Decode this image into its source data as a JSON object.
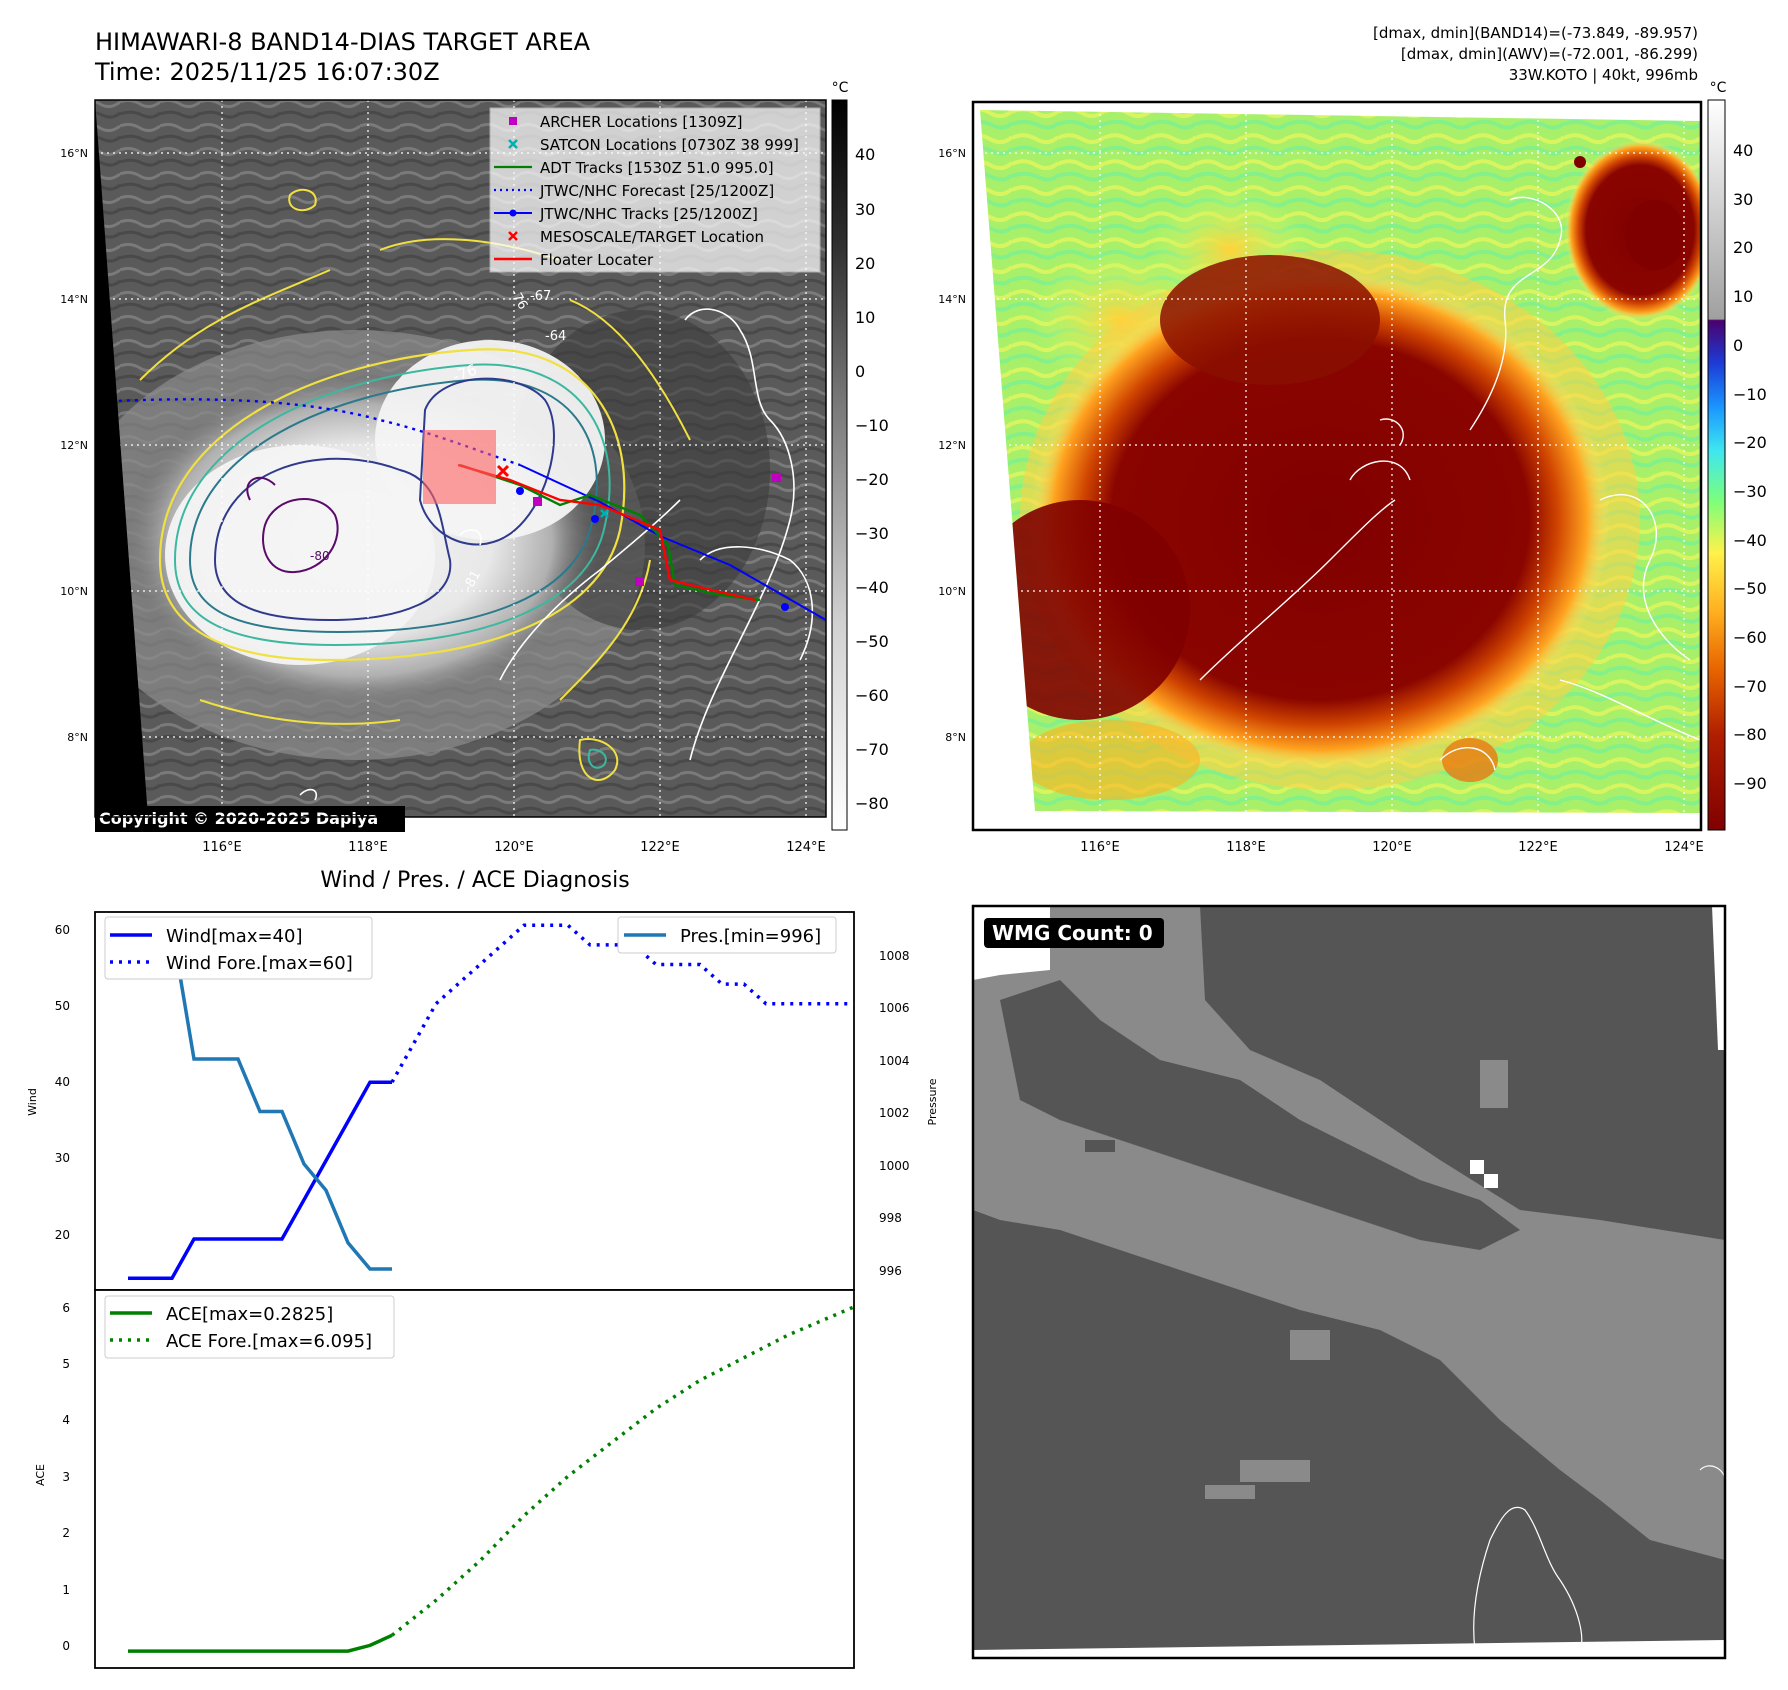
{
  "header": {
    "title_line1": "HIMAWARI-8 BAND14-DIAS TARGET AREA",
    "title_line2": "Time: 2025/11/25 16:07:30Z",
    "stats_line1": "[dmax, dmin](BAND14)=(-73.849, -89.957)",
    "stats_line2": "[dmax, dmin](AWV)=(-72.001, -86.299)",
    "stats_line3": "33W.KOTO | 40kt, 996mb"
  },
  "map": {
    "lat_ticks": [
      "16°N",
      "14°N",
      "12°N",
      "10°N",
      "8°N"
    ],
    "lon_ticks": [
      "116°E",
      "118°E",
      "120°E",
      "122°E",
      "124°E"
    ],
    "copyright": "Copyright © 2020-2025 Dapiya",
    "legend": [
      {
        "label": "ARCHER Locations [1309Z]",
        "color": "#c000c0",
        "marker": "square"
      },
      {
        "label": "SATCON Locations [0730Z 38 999]",
        "color": "#00b0b0",
        "marker": "x"
      },
      {
        "label": "ADT Tracks [1530Z 51.0 995.0]",
        "color": "#008000",
        "marker": "line"
      },
      {
        "label": "JTWC/NHC Forecast [25/1200Z]",
        "color": "#0000ff",
        "marker": "dotted"
      },
      {
        "label": "JTWC/NHC Tracks [25/1200Z]",
        "color": "#0000ff",
        "marker": "line-dot"
      },
      {
        "label": "MESOSCALE/TARGET Location",
        "color": "#ff0000",
        "marker": "x"
      },
      {
        "label": "Floater Locater",
        "color": "#ff0000",
        "marker": "line"
      }
    ],
    "contour_labels": [
      "-76",
      "-76",
      "-67",
      "-64",
      "-81",
      "-80"
    ],
    "cb1_unit": "°C",
    "cb1_ticks": [
      "40",
      "30",
      "20",
      "10",
      "0",
      "−10",
      "−20",
      "−30",
      "−40",
      "−50",
      "−60",
      "−70",
      "−80"
    ],
    "cb2_unit": "°C",
    "cb2_ticks": [
      "40",
      "30",
      "20",
      "10",
      "0",
      "−10",
      "−20",
      "−30",
      "−40",
      "−50",
      "−60",
      "−70",
      "−80",
      "−90"
    ]
  },
  "diag": {
    "title": "Wind / Pres. / ACE Diagnosis",
    "wmg": "WMG Count: 0"
  },
  "chart_data": [
    {
      "type": "line",
      "title": "Wind / Pres. / ACE Diagnosis",
      "ylabel": "Wind",
      "ylabel_right": "Pressure",
      "ylim": [
        13.5,
        61.7
      ],
      "ylim_right": [
        995.2,
        1009.6
      ],
      "yticks": [
        "60",
        "50",
        "40",
        "30",
        "20"
      ],
      "yticks_right": [
        "1008",
        "1006",
        "1004",
        "1002",
        "1000",
        "998",
        "996"
      ],
      "legend_left": [
        "Wind[max=40]",
        "Wind Fore.[max=60]"
      ],
      "legend_right": [
        "Pres.[min=996]"
      ],
      "series": [
        {
          "name": "Wind[max=40]",
          "style": "solid",
          "color": "#0000ff",
          "x": [
            0,
            1,
            2,
            3,
            4,
            5,
            6,
            7,
            8,
            9,
            10,
            11,
            12
          ],
          "values": [
            15,
            15,
            15,
            20,
            20,
            20,
            20,
            20,
            25,
            30,
            35,
            40,
            40
          ]
        },
        {
          "name": "Wind Fore.[max=60]",
          "style": "dotted",
          "color": "#0000ff",
          "x": [
            12,
            13,
            14,
            15,
            16,
            17,
            18,
            19,
            20,
            21,
            22,
            23,
            24,
            25,
            26,
            27,
            28,
            29,
            30,
            31,
            32,
            33
          ],
          "values": [
            40,
            45,
            50,
            52.5,
            55,
            57.5,
            60,
            60,
            60,
            57.5,
            57.5,
            57.5,
            55,
            55,
            55,
            52.5,
            52.5,
            50,
            50,
            50,
            50,
            50
          ]
        },
        {
          "name": "Pres.[min=996]",
          "style": "solid",
          "color": "#1f77b4",
          "axis": "right",
          "x": [
            1.5,
            2,
            3,
            4,
            5,
            6,
            7,
            8,
            9,
            10,
            11,
            12
          ],
          "values": [
            1009,
            1009,
            1004,
            1004,
            1004,
            1002,
            1002,
            1000,
            999,
            997,
            996,
            996
          ]
        }
      ]
    },
    {
      "type": "line",
      "ylabel": "ACE",
      "ylim": [
        -0.3,
        6.4
      ],
      "yticks": [
        "6",
        "5",
        "4",
        "3",
        "2",
        "1",
        "0"
      ],
      "legend": [
        "ACE[max=0.2825]",
        "ACE Fore.[max=6.095]"
      ],
      "series": [
        {
          "name": "ACE[max=0.2825]",
          "style": "solid",
          "color": "#008000",
          "x": [
            0,
            2,
            4,
            6,
            8,
            10,
            11,
            12
          ],
          "values": [
            0,
            0,
            0,
            0,
            0,
            0,
            0.1,
            0.28
          ]
        },
        {
          "name": "ACE Fore.[max=6.095]",
          "style": "dotted",
          "color": "#008000",
          "x": [
            12,
            14,
            16,
            18,
            20,
            22,
            24,
            26,
            28,
            30,
            33
          ],
          "values": [
            0.28,
            0.9,
            1.6,
            2.4,
            3.1,
            3.7,
            4.3,
            4.8,
            5.2,
            5.6,
            6.1
          ]
        }
      ]
    }
  ]
}
